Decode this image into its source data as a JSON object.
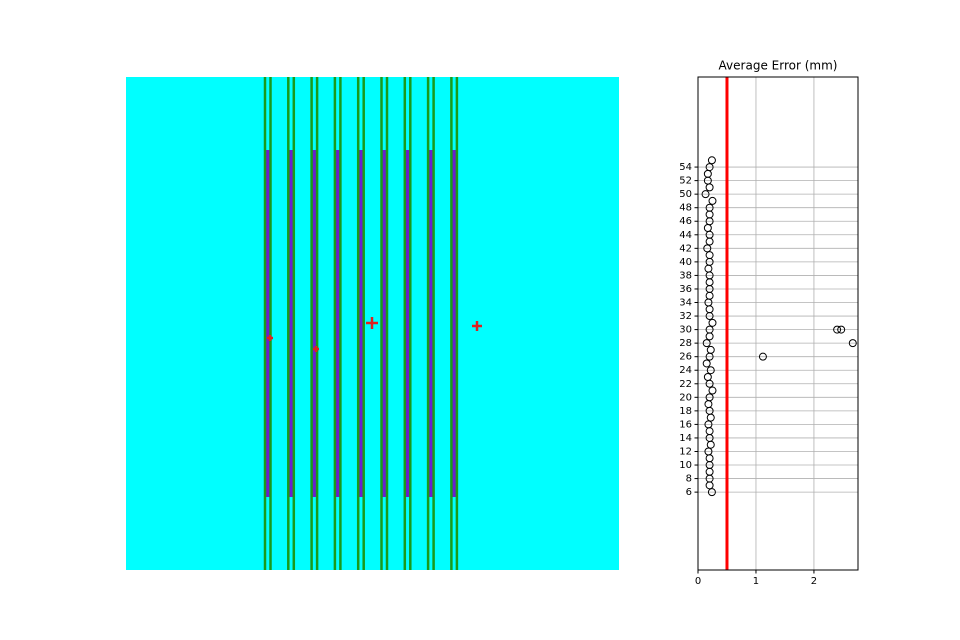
{
  "chart_data": {
    "type": "scatter",
    "title": "Average Error (mm)",
    "x": [
      0.24,
      0.2,
      0.2,
      0.2,
      0.2,
      0.2,
      0.18,
      0.22,
      0.2,
      0.2,
      0.18,
      0.22,
      0.2,
      0.18,
      0.2,
      0.25,
      0.2,
      0.17,
      0.22,
      0.15,
      0.2,
      0.22,
      0.15,
      0.2,
      0.2,
      0.25,
      0.2,
      0.2,
      0.18,
      0.2,
      0.2,
      0.2,
      0.2,
      0.18,
      0.2,
      0.2,
      0.16,
      0.2,
      0.2,
      0.17,
      0.2,
      0.2,
      0.2,
      0.25,
      0.13,
      0.2,
      0.17,
      0.17,
      0.2,
      0.24,
      2.4,
      2.47,
      2.67,
      1.12
    ],
    "y": [
      6,
      7,
      8,
      9,
      10,
      11,
      12,
      13,
      14,
      15,
      16,
      17,
      18,
      19,
      20,
      21,
      22,
      23,
      24,
      25,
      26,
      27,
      28,
      29,
      30,
      31,
      32,
      33,
      34,
      35,
      36,
      37,
      38,
      39,
      40,
      41,
      42,
      43,
      44,
      45,
      46,
      47,
      48,
      49,
      50,
      51,
      52,
      53,
      54,
      55,
      30,
      30,
      28,
      26
    ],
    "xlim": [
      0,
      2.76
    ],
    "ylim": [
      -5.5,
      67.3
    ],
    "xticks": [
      0,
      1,
      2
    ],
    "yticks": [
      6,
      8,
      10,
      12,
      14,
      16,
      18,
      20,
      22,
      24,
      26,
      28,
      30,
      32,
      34,
      36,
      38,
      40,
      42,
      44,
      46,
      48,
      50,
      52,
      54
    ],
    "grid": true,
    "marker_color": "#000000",
    "reference_line": {
      "x": 0.5,
      "color": "#ff0000"
    }
  }
}
